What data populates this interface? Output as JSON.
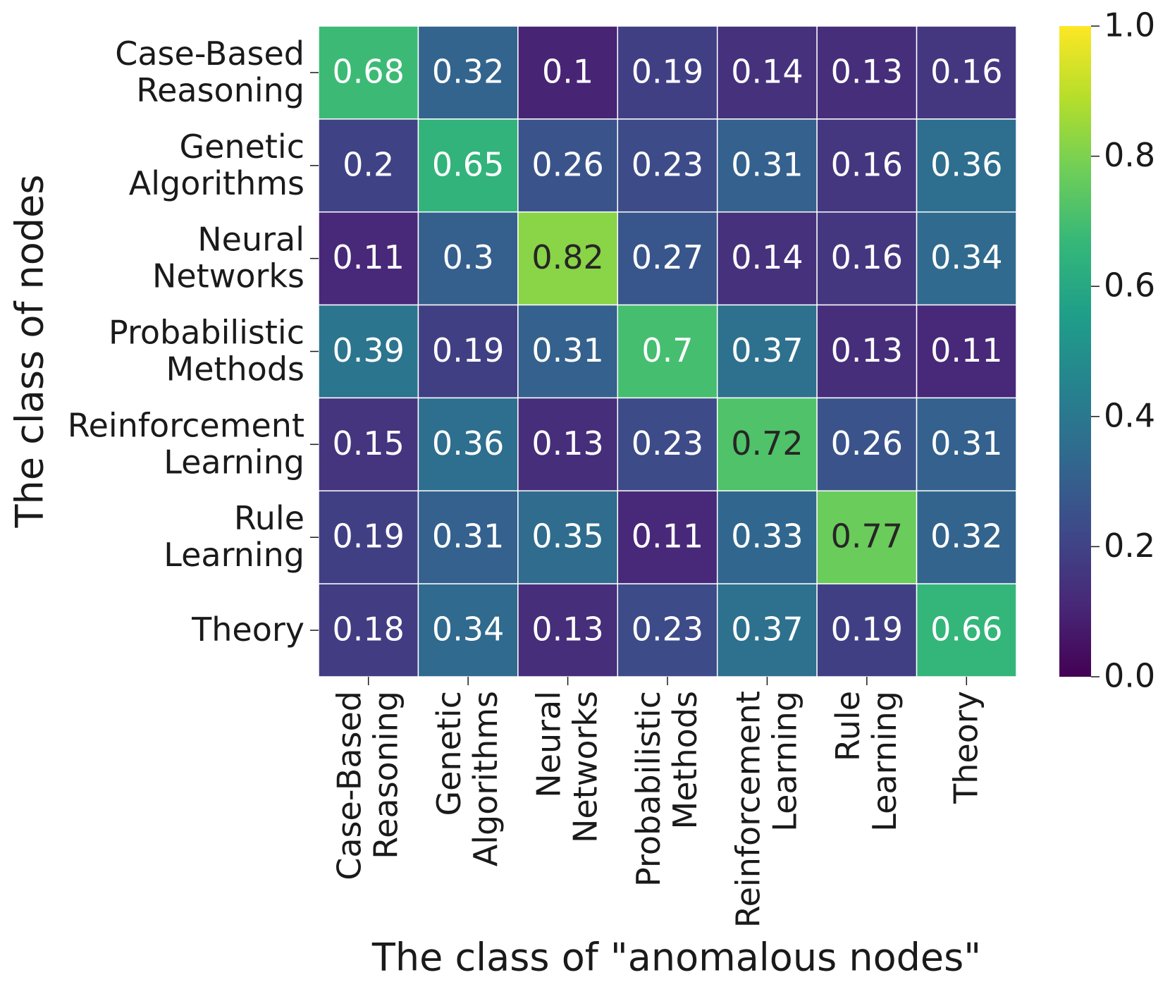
{
  "chart_data": {
    "type": "heatmap",
    "x_label": "The class of \"anomalous nodes\"",
    "y_label": "The class of nodes",
    "x_categories": [
      [
        "Case-Based",
        "Reasoning"
      ],
      [
        "Genetic",
        "Algorithms"
      ],
      [
        "Neural",
        "Networks"
      ],
      [
        "Probabilistic",
        "Methods"
      ],
      [
        "Reinforcement",
        "Learning"
      ],
      [
        "Rule",
        "Learning"
      ],
      [
        "Theory"
      ]
    ],
    "y_categories": [
      [
        "Case-Based",
        "Reasoning"
      ],
      [
        "Genetic",
        "Algorithms"
      ],
      [
        "Neural",
        "Networks"
      ],
      [
        "Probabilistic",
        "Methods"
      ],
      [
        "Reinforcement",
        "Learning"
      ],
      [
        "Rule",
        "Learning"
      ],
      [
        "Theory"
      ]
    ],
    "values": [
      [
        0.68,
        0.32,
        0.1,
        0.19,
        0.14,
        0.13,
        0.16
      ],
      [
        0.2,
        0.65,
        0.26,
        0.23,
        0.31,
        0.16,
        0.36
      ],
      [
        0.11,
        0.3,
        0.82,
        0.27,
        0.14,
        0.16,
        0.34
      ],
      [
        0.39,
        0.19,
        0.31,
        0.7,
        0.37,
        0.13,
        0.11
      ],
      [
        0.15,
        0.36,
        0.13,
        0.23,
        0.72,
        0.26,
        0.31
      ],
      [
        0.19,
        0.31,
        0.35,
        0.11,
        0.33,
        0.77,
        0.32
      ],
      [
        0.18,
        0.34,
        0.13,
        0.23,
        0.37,
        0.19,
        0.66
      ]
    ],
    "colormap": "viridis",
    "zlim": [
      0,
      1
    ],
    "zticks": [
      {
        "value": 0,
        "label": "0.0"
      },
      {
        "value": 0.2,
        "label": "0.2"
      },
      {
        "value": 0.4,
        "label": "0.4"
      },
      {
        "value": 0.6,
        "label": "0.6"
      },
      {
        "value": 0.8,
        "label": "0.8"
      },
      {
        "value": 1,
        "label": "1.0"
      }
    ]
  }
}
